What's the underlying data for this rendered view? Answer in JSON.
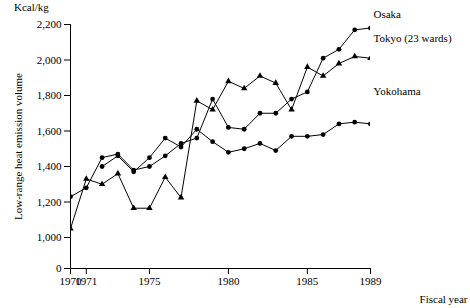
{
  "chart_data": {
    "type": "line",
    "y_label": "Low-range heat emission volume",
    "x_label": "Fiscal year",
    "annotations": [
      "Kcal/kg"
    ],
    "x": [
      1970,
      1971,
      1972,
      1973,
      1974,
      1975,
      1976,
      1977,
      1978,
      1979,
      1980,
      1981,
      1982,
      1983,
      1984,
      1985,
      1986,
      1987,
      1988,
      1989
    ],
    "xlim": [
      1970,
      1989
    ],
    "xticks": [
      1970,
      1971,
      1975,
      1980,
      1985,
      1989
    ],
    "ylim": [
      0,
      2200
    ],
    "yticks": [
      0,
      {
        "value": 1000,
        "label": "1,000"
      },
      {
        "value": 1200,
        "label": "1,200"
      },
      {
        "value": 1400,
        "label": "1,400"
      },
      {
        "value": 1600,
        "label": "1,600"
      },
      {
        "value": 1800,
        "label": "1,800"
      },
      {
        "value": 2000,
        "label": "2,000"
      },
      {
        "value": 2200,
        "label": "2,200"
      }
    ],
    "grid": false,
    "series": [
      {
        "name": "Osaka",
        "color": "#000000",
        "marker": "circle",
        "values": [
          1230,
          1280,
          1450,
          1470,
          1380,
          1400,
          1460,
          1530,
          1560,
          1780,
          1620,
          1610,
          1700,
          1700,
          1780,
          1820,
          2010,
          2060,
          2170,
          2180
        ]
      },
      {
        "name": "Tokyo (23 wards)",
        "color": "#000000",
        "marker": "triangle",
        "values": [
          1050,
          1330,
          1300,
          1360,
          1165,
          1165,
          1340,
          1225,
          1770,
          1720,
          1880,
          1840,
          1910,
          1870,
          1720,
          1960,
          1910,
          1980,
          2020,
          2010
        ]
      },
      {
        "name": "Yokohama",
        "color": "#000000",
        "marker": "circle",
        "values": [
          null,
          null,
          1400,
          1460,
          1370,
          1450,
          1560,
          1510,
          1610,
          1540,
          1480,
          1500,
          1530,
          1490,
          1570,
          1570,
          1580,
          1640,
          1650,
          1640
        ]
      }
    ]
  }
}
